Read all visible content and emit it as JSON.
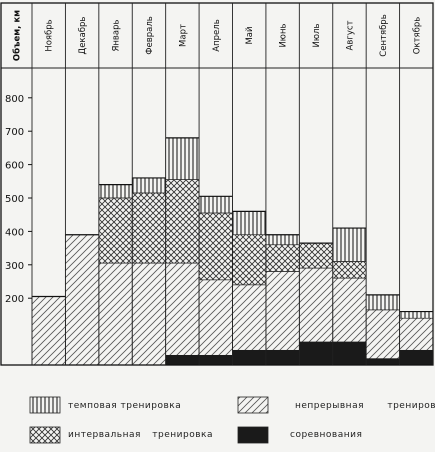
{
  "chart_data": {
    "type": "stacked-bar",
    "ylabel": "Объем, км",
    "yticks": [
      800,
      700,
      600,
      500,
      400,
      300,
      200
    ],
    "ylim": [
      0,
      870
    ],
    "categories": [
      "Ноябрь",
      "Декабрь",
      "Январь",
      "Февраль",
      "Март",
      "Апрель",
      "Май",
      "Июнь",
      "Июль",
      "Август",
      "Сентябрь",
      "Октябрь"
    ],
    "series": [
      {
        "name": "непрерывная тренировка",
        "values": [
          205,
          390,
          305,
          305,
          305,
          255,
          240,
          280,
          290,
          260,
          165,
          140
        ]
      },
      {
        "name": "интервальная тренировка",
        "values": [
          0,
          0,
          195,
          210,
          250,
          200,
          150,
          80,
          75,
          50,
          0,
          0
        ]
      },
      {
        "name": "темповая тренировка",
        "values": [
          0,
          0,
          40,
          45,
          125,
          50,
          70,
          30,
          0,
          100,
          45,
          20
        ]
      },
      {
        "name": "соревнования",
        "values": [
          0,
          0,
          0,
          0,
          30,
          30,
          45,
          45,
          70,
          70,
          20,
          45
        ]
      }
    ],
    "grid": false,
    "legend": "bottom"
  },
  "legend_items": [
    {
      "label": "темповая тренировка"
    },
    {
      "label": "непрерывная тренировка"
    },
    {
      "label": "интервальная тренировка"
    },
    {
      "label": "соревнования"
    }
  ]
}
